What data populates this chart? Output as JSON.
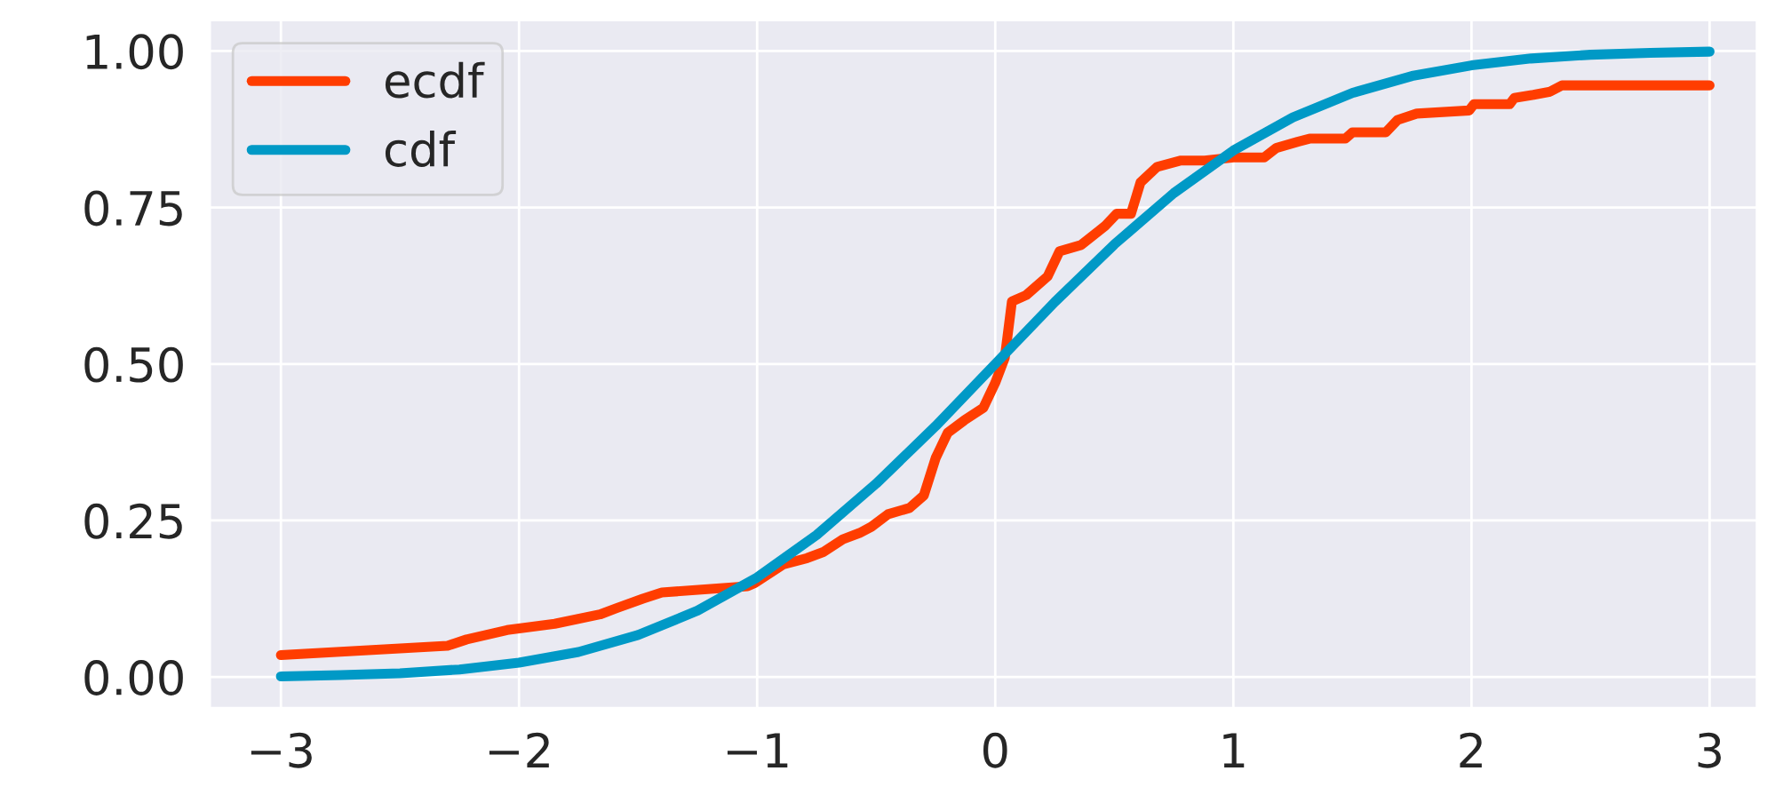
{
  "chart_data": {
    "type": "line",
    "xlim": [
      -3.3,
      3.2
    ],
    "ylim": [
      -0.05,
      1.05
    ],
    "xticks": [
      {
        "value": -3,
        "label": "−3"
      },
      {
        "value": -2,
        "label": "−2"
      },
      {
        "value": -1,
        "label": "−1"
      },
      0,
      1,
      2,
      3
    ],
    "yticks": [
      {
        "value": 0,
        "label": "0.00"
      },
      {
        "value": 0.25,
        "label": "0.25"
      },
      {
        "value": 0.5,
        "label": "0.50"
      },
      {
        "value": 0.75,
        "label": "0.75"
      },
      {
        "value": 1,
        "label": "1.00"
      }
    ],
    "grid": true,
    "legend": "top left",
    "marker": "none",
    "line_style": "solid",
    "series": [
      {
        "name": "ecdf",
        "color": "#ff3d00",
        "x": [
          -3,
          -2.3,
          -2.22,
          -2.05,
          -1.85,
          -1.66,
          -1.59,
          -1.48,
          -1.4,
          -1.04,
          -1.01,
          -0.89,
          -0.79,
          -0.72,
          -0.64,
          -0.57,
          -0.52,
          -0.45,
          -0.36,
          -0.3,
          -0.25,
          -0.2,
          -0.13,
          -0.05,
          0.0,
          0.04,
          0.07,
          0.13,
          0.22,
          0.27,
          0.36,
          0.46,
          0.51,
          0.57,
          0.61,
          0.68,
          0.78,
          0.88,
          1.0,
          1.13,
          1.18,
          1.27,
          1.32,
          1.47,
          1.5,
          1.64,
          1.69,
          1.77,
          1.99,
          2.01,
          2.16,
          2.18,
          2.26,
          2.33,
          2.38,
          3.0
        ],
        "values": [
          0.035,
          0.05,
          0.06,
          0.075,
          0.085,
          0.1,
          0.11,
          0.125,
          0.135,
          0.145,
          0.15,
          0.18,
          0.19,
          0.2,
          0.22,
          0.23,
          0.24,
          0.26,
          0.27,
          0.29,
          0.35,
          0.39,
          0.41,
          0.43,
          0.47,
          0.51,
          0.6,
          0.61,
          0.64,
          0.68,
          0.69,
          0.72,
          0.74,
          0.74,
          0.79,
          0.815,
          0.825,
          0.825,
          0.83,
          0.83,
          0.845,
          0.855,
          0.86,
          0.86,
          0.87,
          0.87,
          0.89,
          0.9,
          0.905,
          0.915,
          0.915,
          0.925,
          0.93,
          0.935,
          0.945,
          0.945
        ]
      },
      {
        "name": "cdf",
        "color": "#0099c6",
        "x": [
          -3,
          -2.75,
          -2.5,
          -2.25,
          -2,
          -1.75,
          -1.5,
          -1.25,
          -1,
          -0.75,
          -0.5,
          -0.25,
          0,
          0.25,
          0.5,
          0.75,
          1,
          1.25,
          1.5,
          1.75,
          2,
          2.25,
          2.5,
          2.75,
          3
        ],
        "values": [
          0.001,
          0.003,
          0.006,
          0.012,
          0.023,
          0.04,
          0.067,
          0.106,
          0.159,
          0.227,
          0.309,
          0.401,
          0.5,
          0.599,
          0.691,
          0.773,
          0.841,
          0.894,
          0.933,
          0.96,
          0.977,
          0.988,
          0.994,
          0.997,
          0.999
        ]
      }
    ]
  }
}
